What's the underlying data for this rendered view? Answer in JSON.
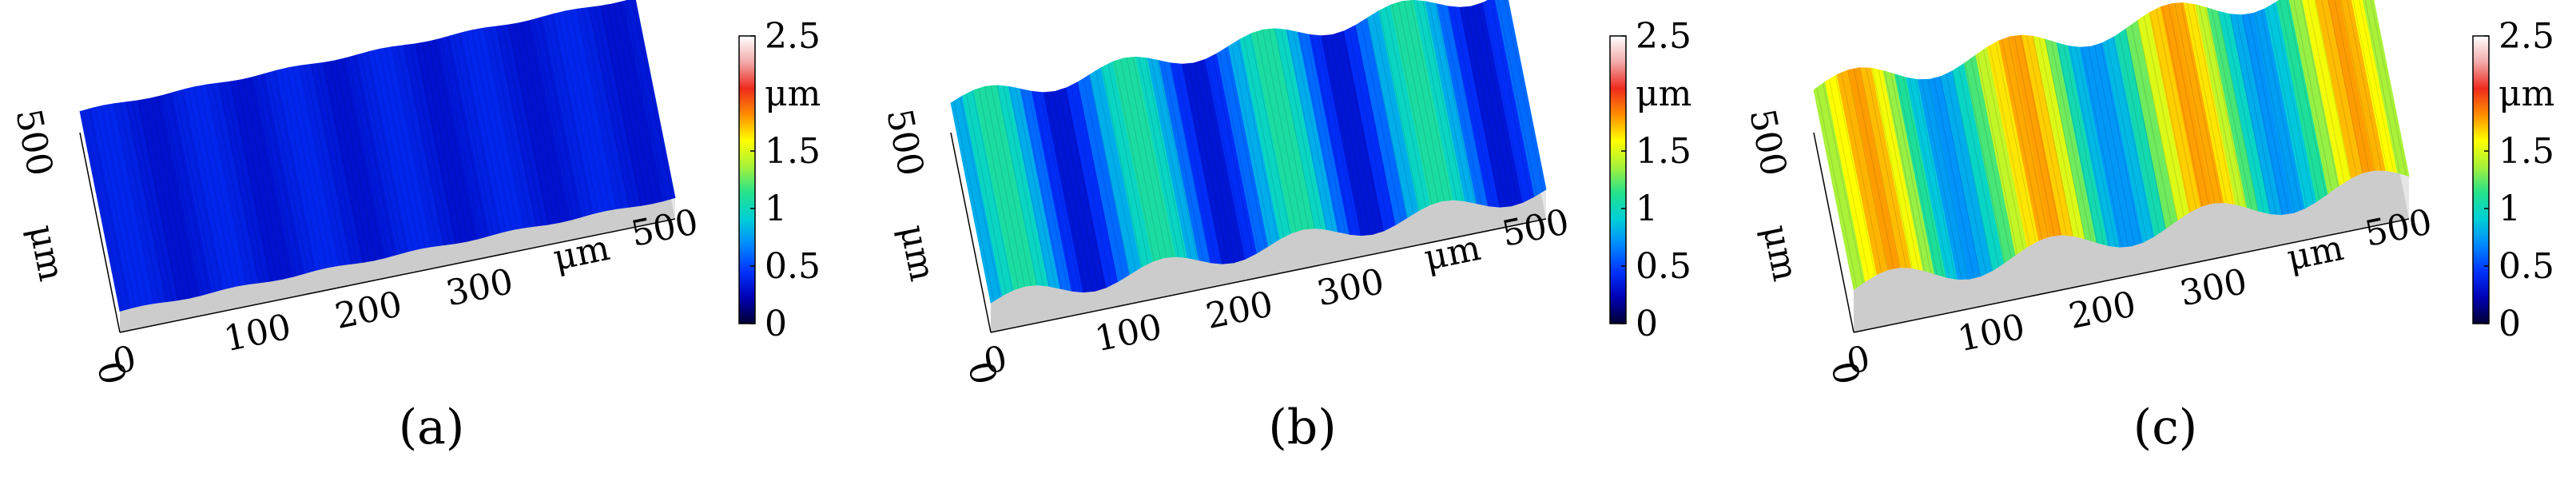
{
  "colormap": [
    "#000033",
    "#0000b4",
    "#0033ff",
    "#0088ff",
    "#00d0d8",
    "#25e28c",
    "#a6f23a",
    "#ffff00",
    "#ff8c00",
    "#ee2a1e",
    "#f2aaaa",
    "#ffffff"
  ],
  "surface_colors": {
    "side_fill": "#cccccc",
    "side_shade": "#e6e6e6"
  },
  "chart_data": [
    {
      "type": "surface3d",
      "panel_label": "(a)",
      "x_ticks": [
        "0",
        "100",
        "200",
        "300"
      ],
      "x_end_tick": "500",
      "x_unit": "μm",
      "y_ticks": [
        "0",
        "500"
      ],
      "y_unit": "μm",
      "x_range": [
        0,
        500
      ],
      "y_range": [
        0,
        500
      ],
      "z_range": [
        0,
        2.5
      ],
      "colorbar": {
        "ticks": [
          "0",
          "0.5",
          "1",
          "1.5",
          "2.5"
        ],
        "unit": "μm"
      },
      "profile": {
        "base": 0.35,
        "amplitude": 0.05,
        "ridges": 6
      }
    },
    {
      "type": "surface3d",
      "panel_label": "(b)",
      "x_ticks": [
        "0",
        "100",
        "200",
        "300"
      ],
      "x_end_tick": "500",
      "x_unit": "μm",
      "y_ticks": [
        "0",
        "500"
      ],
      "y_unit": "μm",
      "x_range": [
        0,
        500
      ],
      "y_range": [
        0,
        500
      ],
      "z_range": [
        0,
        2.5
      ],
      "colorbar": {
        "ticks": [
          "0",
          "0.5",
          "1",
          "1.5",
          "2.5"
        ],
        "unit": "μm"
      },
      "profile": {
        "base": 0.7,
        "amplitude": 0.4,
        "ridges": 4
      }
    },
    {
      "type": "surface3d",
      "panel_label": "(c)",
      "x_ticks": [
        "0",
        "100",
        "200",
        "300"
      ],
      "x_end_tick": "500",
      "x_unit": "μm",
      "y_ticks": [
        "0",
        "500"
      ],
      "y_unit": "μm",
      "x_range": [
        0,
        500
      ],
      "y_range": [
        0,
        500
      ],
      "z_range": [
        0,
        2.5
      ],
      "colorbar": {
        "ticks": [
          "0",
          "0.5",
          "1",
          "1.5",
          "2.5"
        ],
        "unit": "μm"
      },
      "profile": {
        "base": 1.25,
        "amplitude": 0.55,
        "ridges": 3.5
      }
    }
  ]
}
